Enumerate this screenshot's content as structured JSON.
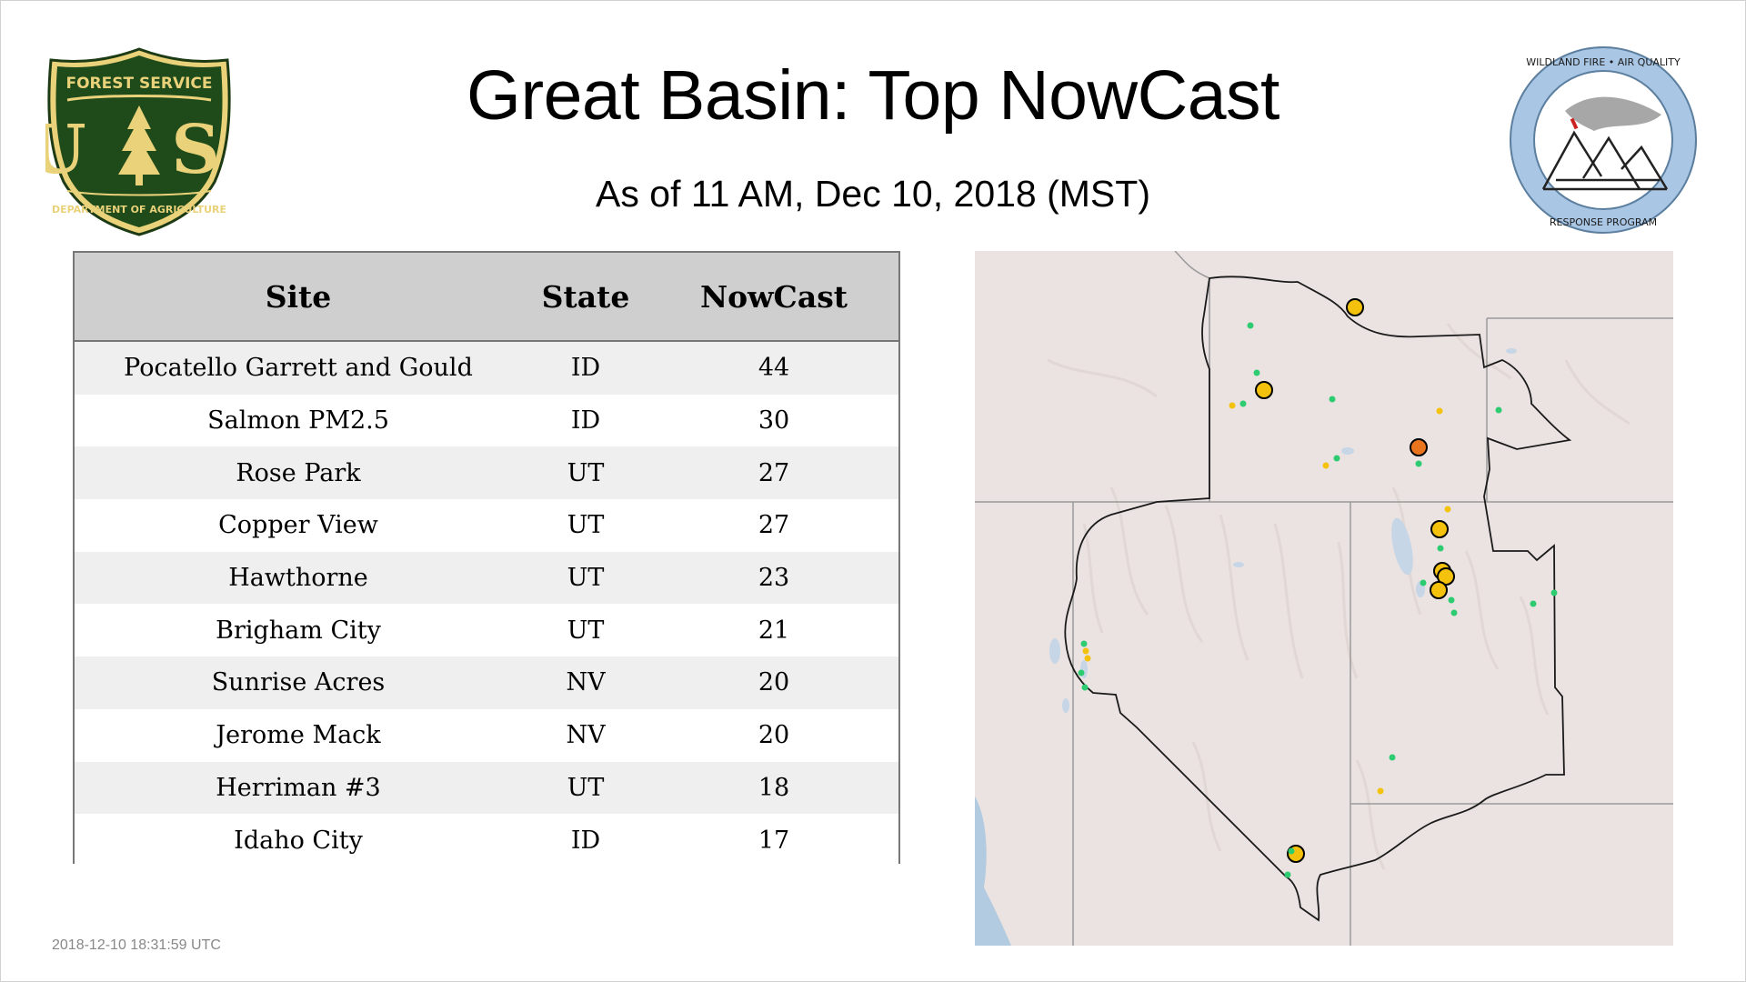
{
  "header": {
    "title": "Great Basin: Top NowCast",
    "subtitle": "As of 11 AM, Dec 10, 2018 (MST)"
  },
  "logos": {
    "usfs": {
      "top_text": "FOREST SERVICE",
      "letters": "U S",
      "bottom_text": "DEPARTMENT OF AGRICULTURE"
    },
    "wfaq": {
      "top_text": "WILDLAND FIRE • AIR QUALITY",
      "bottom_text": "RESPONSE PROGRAM"
    }
  },
  "table": {
    "columns": [
      "Site",
      "State",
      "NowCast"
    ],
    "rows": [
      {
        "site": "Pocatello Garrett and Gould",
        "state": "ID",
        "nowcast": "44"
      },
      {
        "site": "Salmon PM2.5",
        "state": "ID",
        "nowcast": "30"
      },
      {
        "site": "Rose Park",
        "state": "UT",
        "nowcast": "27"
      },
      {
        "site": "Copper View",
        "state": "UT",
        "nowcast": "27"
      },
      {
        "site": "Hawthorne",
        "state": "UT",
        "nowcast": "23"
      },
      {
        "site": "Brigham City",
        "state": "UT",
        "nowcast": "21"
      },
      {
        "site": "Sunrise Acres",
        "state": "NV",
        "nowcast": "20"
      },
      {
        "site": "Jerome Mack",
        "state": "NV",
        "nowcast": "20"
      },
      {
        "site": "Herriman #3",
        "state": "UT",
        "nowcast": "18"
      },
      {
        "site": "Idaho City",
        "state": "ID",
        "nowcast": "17"
      }
    ]
  },
  "map": {
    "colors": {
      "terrain": "#ebe3e1",
      "water": "#c6d6e6",
      "ocean": "#b3cbe0",
      "boundary": "#222222",
      "aqi_good": "#2ecc71",
      "aqi_moderate": "#f4c20d",
      "aqi_usg": "#e8741e"
    }
  },
  "footer": {
    "timestamp": "2018-12-10 18:31:59 UTC"
  }
}
